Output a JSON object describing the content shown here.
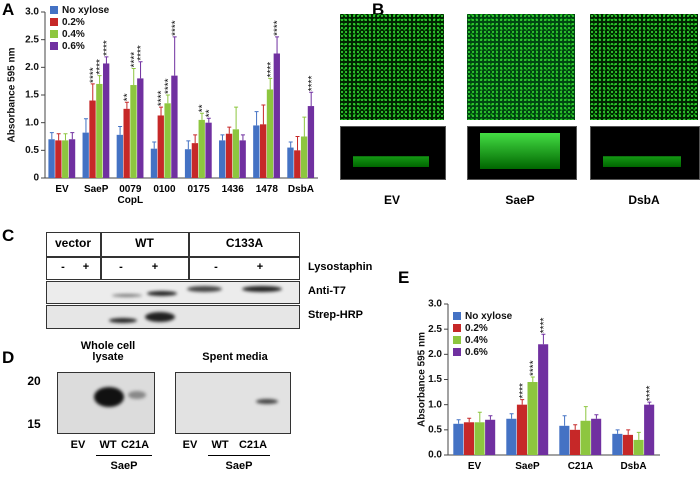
{
  "panel_labels": [
    "A",
    "B",
    "C",
    "D",
    "E"
  ],
  "chart_data": [
    {
      "type": "bar",
      "y_label": "Absorbance 595 nm",
      "categories": [
        "EV",
        "SaeP",
        "0079\nCopL",
        "0100",
        "0175",
        "1436",
        "1478",
        "DsbA"
      ],
      "ylim": [
        0,
        3
      ],
      "yticks": [
        0,
        0.5,
        {
          "value": 1,
          "label": "1.0"
        },
        1.5,
        {
          "value": 2,
          "label": "2.0"
        },
        2.5,
        {
          "value": 3,
          "label": "3.0"
        }
      ],
      "legend": "upper left",
      "series": [
        {
          "name": "No xylose",
          "color": "#4472c4",
          "values": [
            0.7,
            0.82,
            0.78,
            0.53,
            0.52,
            0.68,
            0.95,
            0.55
          ],
          "errors": [
            0.12,
            0.25,
            0.15,
            0.12,
            0.15,
            0.1,
            0.25,
            0.1
          ],
          "significance": [
            null,
            null,
            null,
            null,
            null,
            null,
            null,
            null
          ]
        },
        {
          "name": "0.2%",
          "color": "#c62828",
          "values": [
            0.68,
            1.4,
            1.25,
            1.13,
            0.63,
            0.8,
            0.97,
            0.5
          ],
          "errors": [
            0.12,
            0.3,
            0.12,
            0.15,
            0.15,
            0.12,
            0.35,
            0.25
          ],
          "significance": [
            null,
            "****",
            "**",
            "****",
            null,
            null,
            null,
            null
          ]
        },
        {
          "name": "0.4%",
          "color": "#8dc63f",
          "values": [
            0.68,
            1.7,
            1.68,
            1.35,
            1.05,
            0.88,
            1.6,
            0.75
          ],
          "errors": [
            0.12,
            0.15,
            0.3,
            0.15,
            0.12,
            0.4,
            0.2,
            0.35
          ],
          "significance": [
            null,
            "****",
            "****",
            "****",
            "**",
            null,
            "****",
            null
          ]
        },
        {
          "name": "0.6%",
          "color": "#7030a0",
          "values": [
            0.7,
            2.07,
            1.8,
            1.85,
            1.0,
            0.68,
            2.25,
            1.3
          ],
          "errors": [
            0.12,
            0.12,
            0.3,
            0.7,
            0.08,
            0.1,
            0.3,
            0.25
          ],
          "significance": [
            null,
            "****",
            "****",
            "****",
            "**",
            null,
            "****",
            "****"
          ]
        }
      ]
    },
    {
      "type": "bar",
      "y_label": "Absorbance 595 nm",
      "categories": [
        "EV",
        "SaeP",
        "C21A",
        "DsbA"
      ],
      "ylim": [
        0,
        3
      ],
      "yticks": [
        {
          "value": 0,
          "label": "0.0"
        },
        0.5,
        {
          "value": 1,
          "label": "1.0"
        },
        1.5,
        {
          "value": 2,
          "label": "2.0"
        },
        2.5,
        {
          "value": 3,
          "label": "3.0"
        }
      ],
      "legend": "upper left",
      "series": [
        {
          "name": "No xylose",
          "color": "#4472c4",
          "values": [
            0.62,
            0.72,
            0.58,
            0.42
          ],
          "errors": [
            0.08,
            0.1,
            0.2,
            0.08
          ],
          "significance": [
            null,
            null,
            null,
            null
          ]
        },
        {
          "name": "0.2%",
          "color": "#c62828",
          "values": [
            0.65,
            1.0,
            0.5,
            0.4
          ],
          "errors": [
            0.08,
            0.1,
            0.1,
            0.1
          ],
          "significance": [
            null,
            "****",
            null,
            null
          ]
        },
        {
          "name": "0.4%",
          "color": "#8dc63f",
          "values": [
            0.65,
            1.45,
            0.68,
            0.3
          ],
          "errors": [
            0.2,
            0.1,
            0.28,
            0.15
          ],
          "significance": [
            null,
            "****",
            null,
            null
          ]
        },
        {
          "name": "0.6%",
          "color": "#7030a0",
          "values": [
            0.7,
            2.2,
            0.72,
            1.0
          ],
          "errors": [
            0.08,
            0.2,
            0.08,
            0.05
          ],
          "significance": [
            null,
            "****",
            null,
            "****"
          ]
        }
      ]
    }
  ],
  "microscopy": {
    "labels": [
      "EV",
      "SaeP",
      "DsbA"
    ]
  },
  "blot_c": {
    "groups": [
      "vector",
      "WT",
      "C133A"
    ],
    "lanes": [
      "-",
      "+",
      "-",
      "+",
      "-",
      "+"
    ],
    "treatment": "Lysostaphin",
    "rows": [
      "Anti-T7",
      "Strep-HRP"
    ]
  },
  "blot_d": {
    "markers": [
      "20",
      "15"
    ],
    "panels": [
      {
        "title": "Whole cell\nlysate",
        "lanes": [
          "EV",
          "WT",
          "C21A"
        ],
        "group": "SaeP"
      },
      {
        "title": "Spent media",
        "lanes": [
          "EV",
          "WT",
          "C21A"
        ],
        "group": "SaeP"
      }
    ]
  }
}
